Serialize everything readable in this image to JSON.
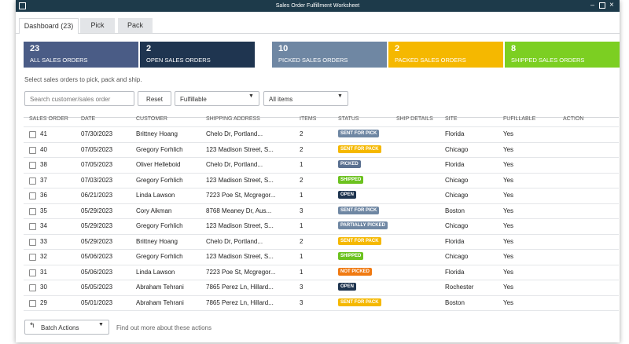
{
  "window": {
    "title": "Sales Order Fulfillment Worksheet"
  },
  "tabs": [
    "Dashboard (23)",
    "Pick",
    "Pack"
  ],
  "cards": [
    {
      "count": 23,
      "label": "ALL SALES ORDERS",
      "color": "#4a5c86"
    },
    {
      "count": 2,
      "label": "OPEN SALES ORDERS",
      "color": "#1f3550"
    },
    {
      "count": 10,
      "label": "PICKED SALES ORDERS",
      "color": "#6f87a3"
    },
    {
      "count": 2,
      "label": "PACKED SALES ORDERS",
      "color": "#f5b800"
    },
    {
      "count": 8,
      "label": "SHIPPED SALES ORDERS",
      "color": "#7ccf22"
    }
  ],
  "instructions": "Select sales orders to pick, pack and ship.",
  "filters": {
    "search_placeholder": "Search customer/sales order",
    "reset": "Reset",
    "fulfillment": "Fulfillable",
    "items": "All items"
  },
  "table": {
    "columns": [
      "SALES ORDER",
      "DATE",
      "CUSTOMER",
      "SHIPPING ADDRESS",
      "ITEMS",
      "STATUS",
      "SHIP DETAILS",
      "SITE",
      "FUFILLABLE",
      "ACTION"
    ],
    "rows": [
      {
        "order": 41,
        "date": "07/30/2023",
        "customer": "Brittney Hoang",
        "address": "Chelo Dr, Portland...",
        "items": 2,
        "status": "SENT FOR PICK",
        "status_color": "#6f87a3",
        "site": "Florida",
        "fulfillable": "Yes"
      },
      {
        "order": 40,
        "date": "07/05/2023",
        "customer": "Gregory Forhlich",
        "address": "123 Madison Street, S...",
        "items": 2,
        "status": "SENT FOR PACK",
        "status_color": "#f5b800",
        "site": "Chicago",
        "fulfillable": "Yes"
      },
      {
        "order": 38,
        "date": "07/05/2023",
        "customer": "Oliver Helleboid",
        "address": "Chelo Dr, Portland...",
        "items": 1,
        "status": "PICKED",
        "status_color": "#5a7090",
        "site": "Florida",
        "fulfillable": "Yes"
      },
      {
        "order": 37,
        "date": "07/03/2023",
        "customer": "Gregory Forhlich",
        "address": "123 Madison Street, S...",
        "items": 2,
        "status": "SHIPPED",
        "status_color": "#6cc21f",
        "site": "Chicago",
        "fulfillable": "Yes"
      },
      {
        "order": 36,
        "date": "06/21/2023",
        "customer": "Linda Lawson",
        "address": "7223 Poe St, Mcgregor...",
        "items": 1,
        "status": "OPEN",
        "status_color": "#1f3550",
        "site": "Chicago",
        "fulfillable": "Yes"
      },
      {
        "order": 35,
        "date": "05/29/2023",
        "customer": "Cory Aikman",
        "address": "8768 Meaney Dr, Aus...",
        "items": 3,
        "status": "SENT FOR PICK",
        "status_color": "#6f87a3",
        "site": "Boston",
        "fulfillable": "Yes"
      },
      {
        "order": 34,
        "date": "05/29/2023",
        "customer": "Gregory Forhlich",
        "address": "123 Madison Street, S...",
        "items": 1,
        "status": "PARTIALLY PICKED",
        "status_color": "#6f87a3",
        "site": "Chicago",
        "fulfillable": "Yes"
      },
      {
        "order": 33,
        "date": "05/29/2023",
        "customer": "Brittney Hoang",
        "address": "Chelo Dr, Portland...",
        "items": 2,
        "status": "SENT FOR PACK",
        "status_color": "#f5b800",
        "site": "Florida",
        "fulfillable": "Yes"
      },
      {
        "order": 32,
        "date": "05/06/2023",
        "customer": "Gregory Forhlich",
        "address": "123 Madison Street, S...",
        "items": 1,
        "status": "SHIPPED",
        "status_color": "#6cc21f",
        "site": "Chicago",
        "fulfillable": "Yes"
      },
      {
        "order": 31,
        "date": "05/06/2023",
        "customer": "Linda Lawson",
        "address": "7223 Poe St, Mcgregor...",
        "items": 1,
        "status": "NOT PICKED",
        "status_color": "#f07a12",
        "site": "Florida",
        "fulfillable": "Yes"
      },
      {
        "order": 30,
        "date": "05/05/2023",
        "customer": "Abraham Tehrani",
        "address": "7865 Perez Ln, Hillard...",
        "items": 3,
        "status": "OPEN",
        "status_color": "#1f3550",
        "site": "Rochester",
        "fulfillable": "Yes"
      },
      {
        "order": 29,
        "date": "05/01/2023",
        "customer": "Abraham Tehrani",
        "address": "7865 Perez Ln, Hillard...",
        "items": 3,
        "status": "SENT FOR PACK",
        "status_color": "#f5b800",
        "site": "Boston",
        "fulfillable": "Yes"
      }
    ]
  },
  "footer": {
    "batch": "Batch Actions",
    "help": "Find out more about these actions"
  }
}
